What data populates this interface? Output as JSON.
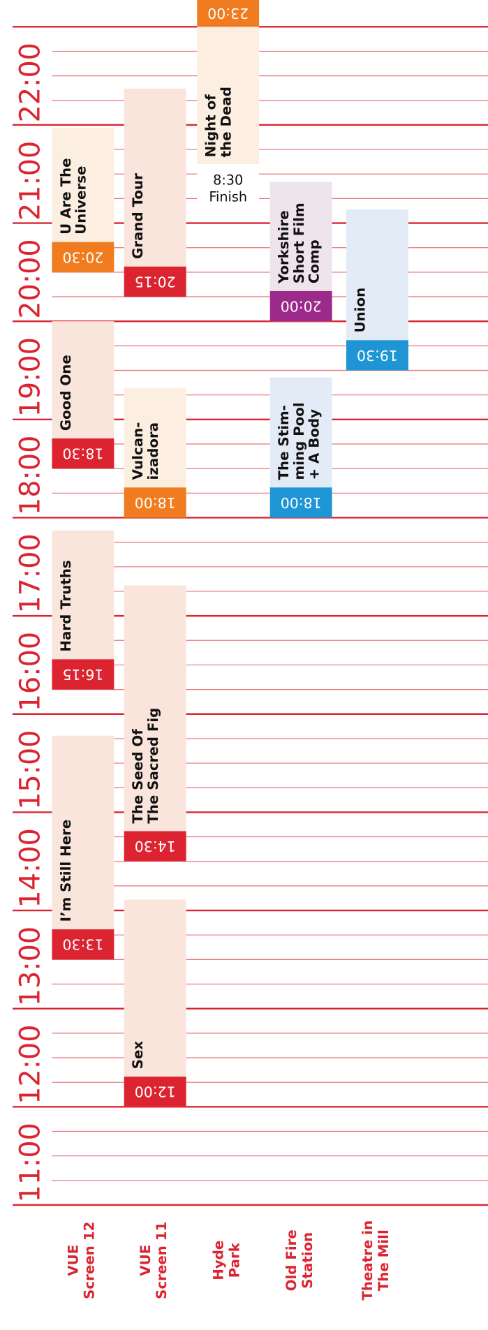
{
  "hour_labels": [
    "22:00",
    "21:00",
    "20:00",
    "19:00",
    "18:00",
    "17:00",
    "16:00",
    "15:00",
    "14:00",
    "13:00",
    "12:00",
    "11:00"
  ],
  "venues": [
    {
      "lines": [
        "VUE",
        "Screen 12"
      ]
    },
    {
      "lines": [
        "VUE",
        "Screen 11"
      ]
    },
    {
      "lines": [
        "Hyde",
        "Park"
      ]
    },
    {
      "lines": [
        "Old Fire",
        "Station"
      ]
    },
    {
      "lines": [
        "Theatre in",
        "The Mill"
      ]
    }
  ],
  "events": [
    {
      "title": [
        "I’m Still Here"
      ],
      "start": "13:30",
      "tag_color": "#dc2430",
      "block_color": "#fae5dc"
    },
    {
      "title": [
        "Hard Truths"
      ],
      "start": "16:15",
      "tag_color": "#dc2430",
      "block_color": "#fae5dc"
    },
    {
      "title": [
        "Good One"
      ],
      "start": "18:30",
      "tag_color": "#dc2430",
      "block_color": "#fae5dc"
    },
    {
      "title": [
        "U Are The",
        "Universe"
      ],
      "start": "20:30",
      "tag_color": "#f07c1f",
      "block_color": "#fdeee2"
    },
    {
      "title": [
        "Sex"
      ],
      "start": "12:00",
      "tag_color": "#dc2430",
      "block_color": "#fae5dc"
    },
    {
      "title": [
        "The Seed Of",
        "The Sacred Fig"
      ],
      "start": "14:30",
      "tag_color": "#dc2430",
      "block_color": "#fae5dc"
    },
    {
      "title": [
        "Vulcan-",
        "izadora"
      ],
      "start": "18:00",
      "tag_color": "#f07c1f",
      "block_color": "#fdeee2"
    },
    {
      "title": [
        "Grand Tour"
      ],
      "start": "20:15",
      "tag_color": "#dc2430",
      "block_color": "#fae5dc"
    },
    {
      "title": [
        "Night of",
        "the Dead"
      ],
      "start": "23:00",
      "finish": [
        "8:30",
        "Finish"
      ],
      "tag_color": "#f07c1f",
      "block_color": "#fdeee2"
    },
    {
      "title": [
        "The Stim-",
        "ming Pool",
        "+ A Body"
      ],
      "start": "18:00",
      "tag_color": "#1e95d4",
      "block_color": "#e3ecf6"
    },
    {
      "title": [
        "Yorkshire",
        "Short Film",
        "Comp"
      ],
      "start": "20:00",
      "tag_color": "#9c2a8a",
      "block_color": "#ede4ec"
    },
    {
      "title": [
        "Union"
      ],
      "start": "19:30",
      "tag_color": "#1e95d4",
      "block_color": "#e3ecf6"
    }
  ]
}
